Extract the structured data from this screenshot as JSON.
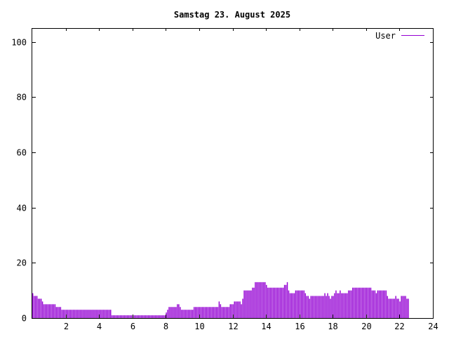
{
  "chart_data": {
    "type": "bar",
    "title": "Samstag 23. August 2025",
    "xlabel": "",
    "ylabel": "",
    "xlim": [
      0,
      24
    ],
    "ylim": [
      0,
      105
    ],
    "x_ticks": [
      {
        "value": 2,
        "label": "2"
      },
      {
        "value": 4,
        "label": "4"
      },
      {
        "value": 6,
        "label": "6"
      },
      {
        "value": 8,
        "label": "8"
      },
      {
        "value": 10,
        "label": "10"
      },
      {
        "value": 12,
        "label": "12"
      },
      {
        "value": 14,
        "label": "14"
      },
      {
        "value": 16,
        "label": "16"
      },
      {
        "value": 18,
        "label": "18"
      },
      {
        "value": 20,
        "label": "20"
      },
      {
        "value": 22,
        "label": "22"
      },
      {
        "value": 24,
        "label": "24"
      }
    ],
    "y_ticks": [
      {
        "value": 0,
        "label": "0"
      },
      {
        "value": 20,
        "label": "20"
      },
      {
        "value": 40,
        "label": "40"
      },
      {
        "value": 60,
        "label": "60"
      },
      {
        "value": 80,
        "label": "80"
      },
      {
        "value": 100,
        "label": "100"
      }
    ],
    "grid": false,
    "legend_position": "top-right",
    "bar_color": "#9400d3",
    "series": [
      {
        "name": "User",
        "sample_minutes": 5,
        "values": [
          9,
          8,
          8,
          8,
          7,
          7,
          7,
          6,
          5,
          5,
          5,
          5,
          5,
          5,
          5,
          5,
          5,
          4,
          4,
          4,
          4,
          3,
          3,
          3,
          3,
          3,
          3,
          3,
          3,
          3,
          3,
          3,
          3,
          3,
          3,
          3,
          3,
          3,
          3,
          3,
          3,
          3,
          3,
          3,
          3,
          3,
          3,
          3,
          3,
          3,
          3,
          3,
          3,
          3,
          3,
          3,
          3,
          1,
          1,
          1,
          1,
          1,
          1,
          1,
          1,
          1,
          1,
          1,
          1,
          1,
          1,
          1,
          1,
          1,
          1,
          1,
          1,
          1,
          1,
          1,
          1,
          1,
          1,
          1,
          1,
          1,
          1,
          1,
          1,
          1,
          1,
          1,
          1,
          1,
          1,
          1,
          2,
          3,
          4,
          4,
          4,
          4,
          4,
          4,
          5,
          5,
          4,
          3,
          3,
          3,
          3,
          3,
          3,
          3,
          3,
          3,
          4,
          4,
          4,
          4,
          4,
          4,
          4,
          4,
          4,
          4,
          4,
          4,
          4,
          4,
          4,
          4,
          4,
          4,
          6,
          5,
          4,
          4,
          4,
          4,
          4,
          4,
          5,
          5,
          5,
          6,
          6,
          6,
          6,
          6,
          5,
          7,
          10,
          10,
          10,
          10,
          10,
          10,
          11,
          11,
          13,
          13,
          13,
          13,
          13,
          13,
          13,
          13,
          12,
          11,
          11,
          11,
          11,
          11,
          11,
          11,
          11,
          11,
          11,
          11,
          11,
          12,
          12,
          13,
          10,
          9,
          9,
          9,
          9,
          10,
          10,
          10,
          10,
          10,
          10,
          10,
          9,
          8,
          8,
          7,
          8,
          8,
          8,
          8,
          8,
          8,
          8,
          8,
          8,
          8,
          9,
          8,
          9,
          8,
          7,
          8,
          8,
          9,
          10,
          9,
          9,
          10,
          9,
          9,
          9,
          9,
          9,
          10,
          10,
          10,
          11,
          11,
          11,
          11,
          11,
          11,
          11,
          11,
          11,
          11,
          11,
          11,
          11,
          11,
          10,
          10,
          10,
          9,
          10,
          10,
          10,
          10,
          10,
          10,
          10,
          8,
          7,
          7,
          7,
          7,
          7,
          8,
          7,
          7,
          6,
          8,
          8,
          8,
          8,
          7,
          7
        ]
      }
    ]
  }
}
